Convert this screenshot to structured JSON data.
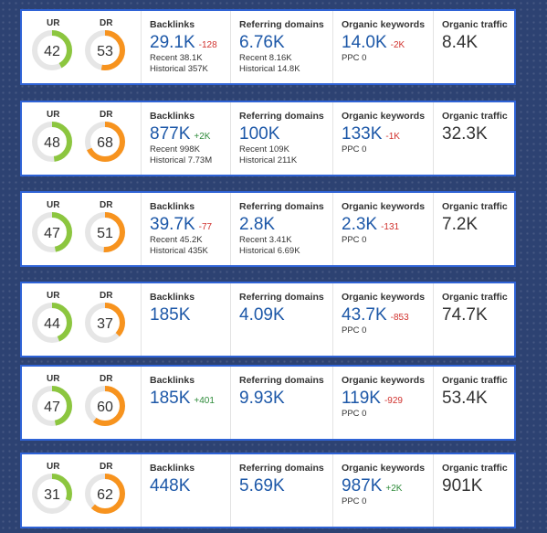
{
  "colors": {
    "UR": "#8cc63f",
    "DR": "#f7931e",
    "track": "#e6e6e6",
    "up": "#2e8b3a",
    "down": "#d0312d"
  },
  "panels": [
    {
      "gauges": [
        {
          "label": "UR",
          "value": 42
        },
        {
          "label": "DR",
          "value": 53
        }
      ],
      "metrics": [
        {
          "title": "Backlinks",
          "value": "29.1K",
          "change": "-128",
          "lines": [
            "Recent 38.1K",
            "Historical 357K"
          ]
        },
        {
          "title": "Referring domains",
          "value": "6.76K",
          "lines": [
            "Recent 8.16K",
            "Historical 14.8K"
          ]
        },
        {
          "title": "Organic keywords",
          "value": "14.0K",
          "change": "-2K",
          "lines": [
            "PPC 0"
          ]
        },
        {
          "title": "Organic traffic",
          "value": "8.4K"
        }
      ]
    },
    {
      "gauges": [
        {
          "label": "UR",
          "value": 48
        },
        {
          "label": "DR",
          "value": 68
        }
      ],
      "metrics": [
        {
          "title": "Backlinks",
          "value": "877K",
          "change": "+2K",
          "lines": [
            "Recent 998K",
            "Historical 7.73M"
          ]
        },
        {
          "title": "Referring domains",
          "value": "100K",
          "lines": [
            "Recent 109K",
            "Historical 211K"
          ]
        },
        {
          "title": "Organic keywords",
          "value": "133K",
          "change": "-1K",
          "lines": [
            "PPC 0"
          ]
        },
        {
          "title": "Organic traffic",
          "value": "32.3K"
        }
      ]
    },
    {
      "gauges": [
        {
          "label": "UR",
          "value": 47
        },
        {
          "label": "DR",
          "value": 51
        }
      ],
      "metrics": [
        {
          "title": "Backlinks",
          "value": "39.7K",
          "change": "-77",
          "lines": [
            "Recent 45.2K",
            "Historical 435K"
          ]
        },
        {
          "title": "Referring domains",
          "value": "2.8K",
          "lines": [
            "Recent 3.41K",
            "Historical 6.69K"
          ]
        },
        {
          "title": "Organic keywords",
          "value": "2.3K",
          "change": "-131",
          "lines": [
            "PPC 0"
          ]
        },
        {
          "title": "Organic traffic",
          "value": "7.2K"
        }
      ]
    },
    {
      "gauges": [
        {
          "label": "UR",
          "value": 44
        },
        {
          "label": "DR",
          "value": 37
        }
      ],
      "metrics": [
        {
          "title": "Backlinks",
          "value": "185K"
        },
        {
          "title": "Referring domains",
          "value": "4.09K"
        },
        {
          "title": "Organic keywords",
          "value": "43.7K",
          "change": "-853",
          "lines": [
            "PPC 0"
          ]
        },
        {
          "title": "Organic traffic",
          "value": "74.7K"
        }
      ]
    },
    {
      "gauges": [
        {
          "label": "UR",
          "value": 47
        },
        {
          "label": "DR",
          "value": 60
        }
      ],
      "metrics": [
        {
          "title": "Backlinks",
          "value": "185K",
          "change": "+401"
        },
        {
          "title": "Referring domains",
          "value": "9.93K"
        },
        {
          "title": "Organic keywords",
          "value": "119K",
          "change": "-929",
          "lines": [
            "PPC 0"
          ]
        },
        {
          "title": "Organic traffic",
          "value": "53.4K"
        }
      ]
    },
    {
      "gauges": [
        {
          "label": "UR",
          "value": 31
        },
        {
          "label": "DR",
          "value": 62
        }
      ],
      "metrics": [
        {
          "title": "Backlinks",
          "value": "448K"
        },
        {
          "title": "Referring domains",
          "value": "5.69K"
        },
        {
          "title": "Organic keywords",
          "value": "987K",
          "change": "+2K",
          "lines": [
            "PPC 0"
          ]
        },
        {
          "title": "Organic traffic",
          "value": "901K"
        }
      ]
    }
  ]
}
